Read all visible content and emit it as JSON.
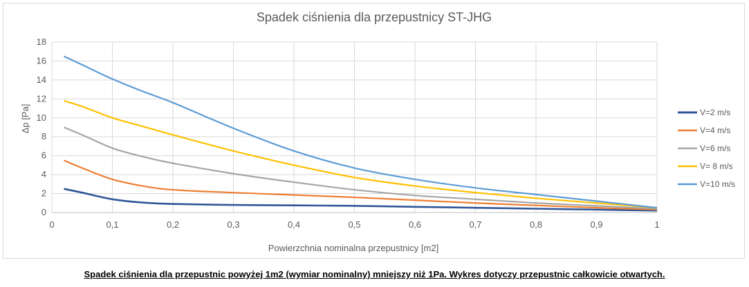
{
  "chart_data": {
    "type": "line",
    "title": "Spadek ciśnienia dla przepustnicy ST-JHG",
    "xlabel": "Powierzchnia nominalna przepustnicy [m2]",
    "ylabel": "Δp [Pa]",
    "xlim": [
      0,
      1
    ],
    "ylim": [
      0,
      18
    ],
    "x_ticks": [
      "0",
      "0,1",
      "0,2",
      "0,3",
      "0,4",
      "0,5",
      "0,6",
      "0,7",
      "0,8",
      "0,9",
      "1"
    ],
    "y_ticks": [
      "0",
      "2",
      "4",
      "6",
      "8",
      "10",
      "12",
      "14",
      "16",
      "18"
    ],
    "grid": true,
    "legend_position": "right",
    "series": [
      {
        "name": "V=2 m/s",
        "color": "#2f5597",
        "x": [
          0.02,
          0.05,
          0.1,
          0.15,
          0.2,
          0.3,
          0.4,
          0.5,
          0.6,
          0.7,
          0.8,
          0.9,
          1.0
        ],
        "y": [
          2.5,
          2.1,
          1.4,
          1.05,
          0.9,
          0.8,
          0.75,
          0.7,
          0.6,
          0.5,
          0.4,
          0.3,
          0.2
        ]
      },
      {
        "name": "V=4 m/s",
        "color": "#ed7d31",
        "x": [
          0.02,
          0.05,
          0.1,
          0.15,
          0.2,
          0.3,
          0.4,
          0.5,
          0.6,
          0.7,
          0.8,
          0.9,
          1.0
        ],
        "y": [
          5.5,
          4.7,
          3.5,
          2.8,
          2.4,
          2.1,
          1.85,
          1.6,
          1.3,
          1.0,
          0.75,
          0.5,
          0.3
        ]
      },
      {
        "name": "V=6 m/s",
        "color": "#a5a5a5",
        "x": [
          0.02,
          0.05,
          0.1,
          0.15,
          0.2,
          0.3,
          0.4,
          0.5,
          0.6,
          0.7,
          0.8,
          0.9,
          1.0
        ],
        "y": [
          9.0,
          8.2,
          6.8,
          5.9,
          5.2,
          4.1,
          3.2,
          2.4,
          1.8,
          1.4,
          1.0,
          0.7,
          0.4
        ]
      },
      {
        "name": "V= 8 m/s",
        "color": "#ffc000",
        "x": [
          0.02,
          0.05,
          0.1,
          0.15,
          0.2,
          0.3,
          0.4,
          0.5,
          0.6,
          0.7,
          0.8,
          0.9,
          1.0
        ],
        "y": [
          11.8,
          11.2,
          10.0,
          9.1,
          8.2,
          6.5,
          5.0,
          3.7,
          2.8,
          2.1,
          1.5,
          1.0,
          0.5
        ]
      },
      {
        "name": "V=10 m/s",
        "color": "#5b9bd5",
        "x": [
          0.02,
          0.05,
          0.1,
          0.15,
          0.2,
          0.3,
          0.4,
          0.5,
          0.6,
          0.7,
          0.8,
          0.9,
          1.0
        ],
        "y": [
          16.5,
          15.6,
          14.1,
          12.8,
          11.6,
          8.9,
          6.5,
          4.7,
          3.5,
          2.6,
          1.9,
          1.2,
          0.5
        ]
      }
    ]
  },
  "caption": "Spadek ciśnienia dla przepustnic powyżej 1m2 (wymiar nominalny) mniejszy niż 1Pa. Wykres dotyczy przepustnic całkowicie otwartych."
}
